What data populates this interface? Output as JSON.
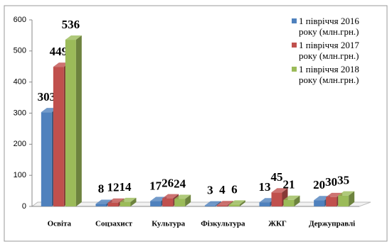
{
  "chart_data": {
    "type": "bar3d",
    "categories": [
      "Освіта",
      "Соцзахист",
      "Культура",
      "Фізкультура",
      "ЖКГ",
      "Держуправлі"
    ],
    "series": [
      {
        "name": "1 півріччя 2016 року (млн.грн.)",
        "color": "#4f81bd",
        "values": [
          303,
          8,
          17,
          3,
          13,
          20
        ]
      },
      {
        "name": "1 півріччя 2017 року (млн.грн.)",
        "color": "#c0504d",
        "values": [
          449,
          12,
          26,
          4,
          45,
          30
        ]
      },
      {
        "name": "1 півріччя 2018 року (млн.грн.)",
        "color": "#9bbb59",
        "values": [
          536,
          14,
          24,
          6,
          21,
          35
        ]
      }
    ],
    "ylim": [
      0,
      600
    ],
    "yticks": [
      0,
      100,
      200,
      300,
      400,
      500,
      600
    ],
    "legend": "right"
  }
}
